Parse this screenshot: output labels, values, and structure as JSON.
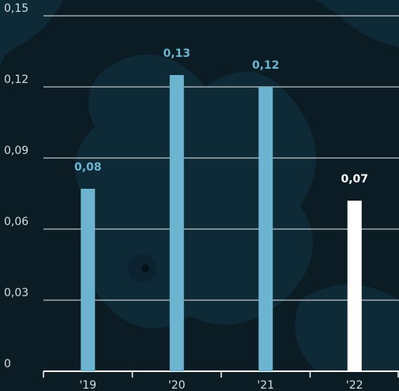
{
  "chart_data": {
    "type": "bar",
    "categories": [
      "'19",
      "'20",
      "'21",
      "'22"
    ],
    "values": [
      0.077,
      0.125,
      0.12,
      0.072
    ],
    "value_labels": [
      "0,08",
      "0,13",
      "0,12",
      "0,07"
    ],
    "colors": [
      "#6cb4d0",
      "#6cb4d0",
      "#6cb4d0",
      "#ffffff"
    ],
    "ylim": [
      0,
      0.15
    ],
    "yticks": [
      0,
      {
        "value": 0.03,
        "label": "0,03"
      },
      {
        "value": 0.06,
        "label": "0,06"
      },
      {
        "value": 0.09,
        "label": "0,09"
      },
      {
        "value": 0.12,
        "label": "0,12"
      },
      {
        "value": 0.15,
        "label": "0,15"
      }
    ],
    "grid": true
  }
}
